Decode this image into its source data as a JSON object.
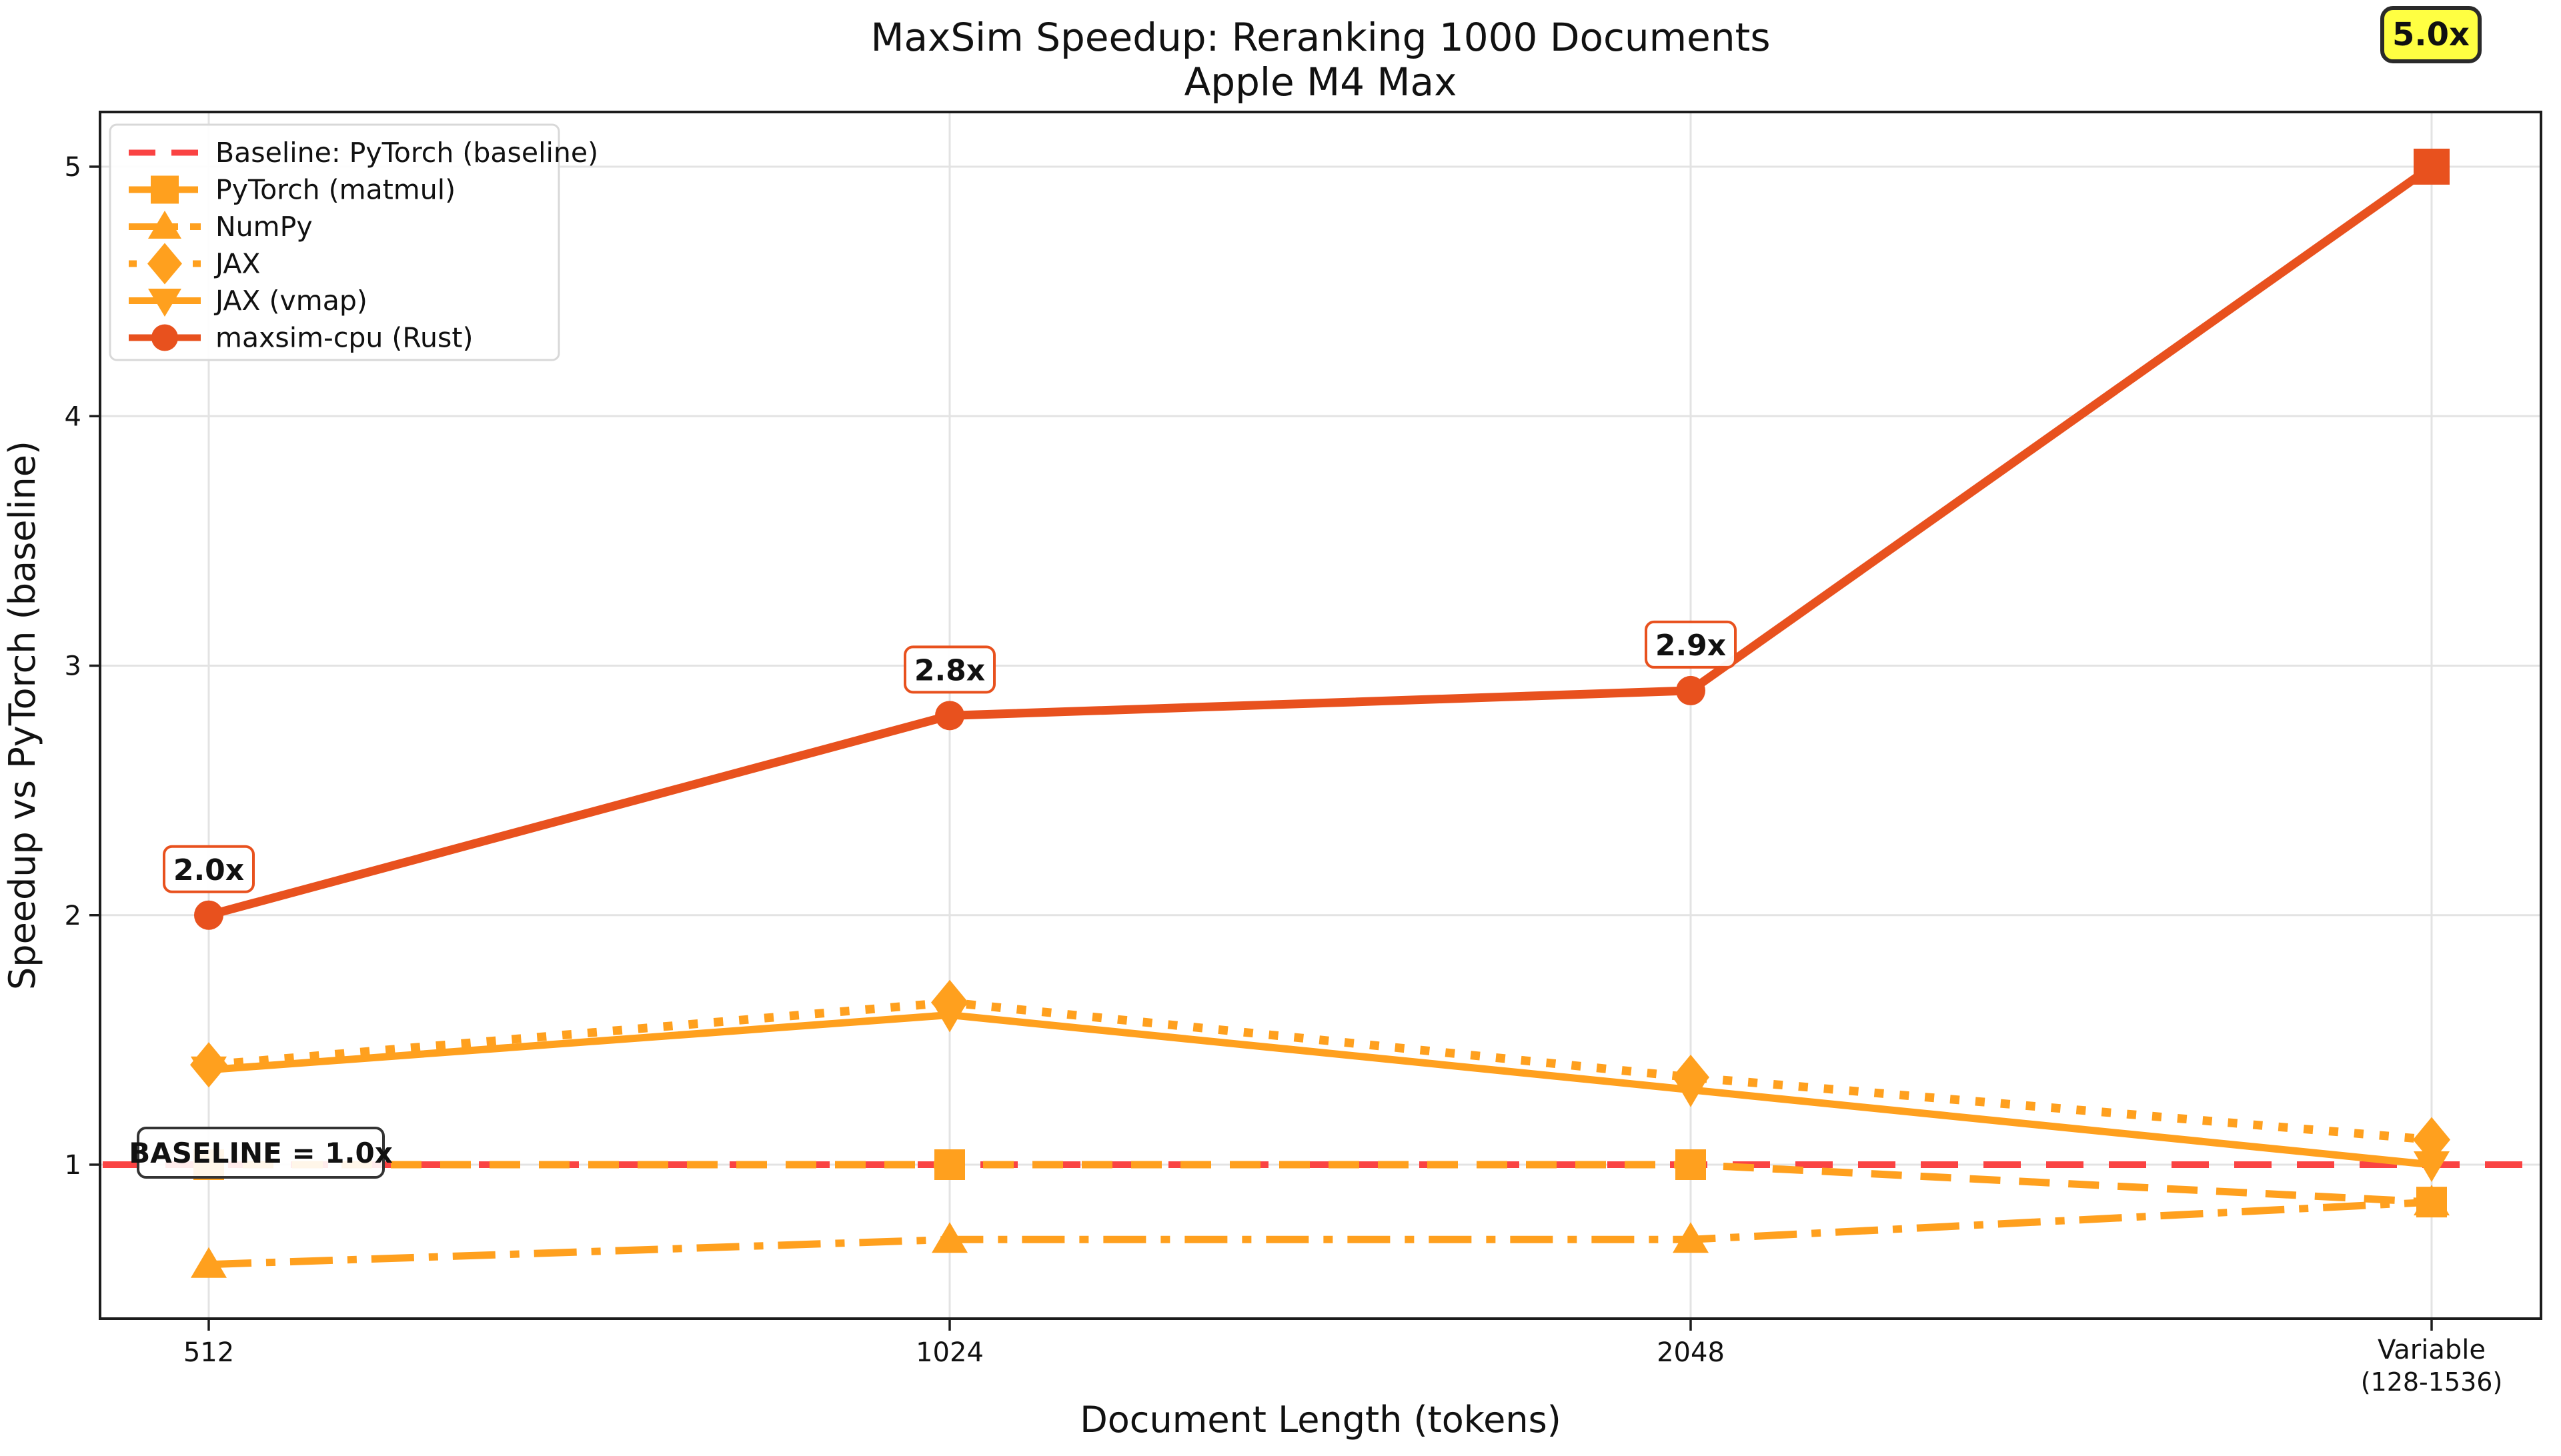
{
  "chart_data": {
    "type": "line",
    "title": "MaxSim Speedup: Reranking 1000 Documents",
    "subtitle": "Apple M4 Max",
    "xlabel": "Document Length (tokens)",
    "ylabel": "Speedup vs PyTorch (baseline)",
    "x_ticks": [
      {
        "label": "512"
      },
      {
        "label": "1024"
      },
      {
        "label": "2048"
      },
      {
        "label": "Variable",
        "sublabel": "(128-1536)"
      }
    ],
    "y_ticks": [
      1,
      2,
      3,
      4,
      5
    ],
    "ylim": [
      0.38,
      5.22
    ],
    "grid": true,
    "legend_position": "upper left",
    "series": [
      {
        "name": "Baseline: PyTorch (baseline)",
        "color": "#FA4343",
        "line": "dashed",
        "marker": "none",
        "values": [
          1.0,
          1.0,
          1.0,
          1.0
        ]
      },
      {
        "name": "PyTorch (matmul)",
        "color": "#FFA01E",
        "line": "dashed",
        "marker": "square",
        "values": [
          1.0,
          1.0,
          1.0,
          0.85
        ]
      },
      {
        "name": "NumPy",
        "color": "#FFA01E",
        "line": "dashdot",
        "marker": "triangle-up",
        "values": [
          0.6,
          0.7,
          0.7,
          0.85
        ]
      },
      {
        "name": "JAX",
        "color": "#FFA01E",
        "line": "dotted",
        "marker": "diamond",
        "values": [
          1.4,
          1.65,
          1.35,
          1.1
        ]
      },
      {
        "name": "JAX (vmap)",
        "color": "#FFA01E",
        "line": "solid",
        "marker": "triangle-down",
        "values": [
          1.38,
          1.6,
          1.3,
          1.0
        ]
      },
      {
        "name": "maxsim-cpu (Rust)",
        "color": "#E8511E",
        "line": "solid",
        "marker": "circle",
        "last_marker": "square",
        "values": [
          2.0,
          2.8,
          2.9,
          5.0
        ]
      }
    ],
    "annotations": [
      {
        "text": "2.0x",
        "x_index": 0,
        "value": 2.0
      },
      {
        "text": "2.8x",
        "x_index": 1,
        "value": 2.8
      },
      {
        "text": "2.9x",
        "x_index": 2,
        "value": 2.9
      }
    ],
    "badge": {
      "text": "5.0x",
      "bg": "#FFFF42",
      "border": "#2A2A2A",
      "color": "#E8511E"
    },
    "baseline_label": {
      "text": "BASELINE = 1.0x",
      "color": "#E81212",
      "border": "#333333"
    }
  },
  "colors": {
    "grid": "#E3E3E3",
    "spine": "#1C1C1C",
    "legend_border": "#D8D8D8",
    "text": "#111111"
  }
}
